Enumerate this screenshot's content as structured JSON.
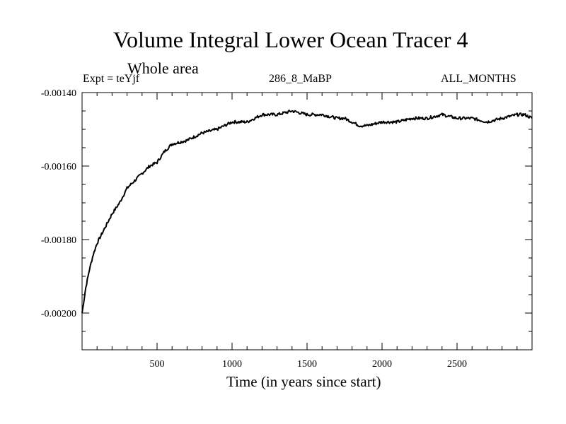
{
  "chart_data": {
    "type": "line",
    "title": "Volume Integral Lower Ocean Tracer 4",
    "subtitle": "Whole area",
    "experiment": "Expt = teYjf",
    "run_label": "286_8_MaBP",
    "period_label": "ALL_MONTHS",
    "xlabel": "Time (in years since start)",
    "ylabel": "",
    "xlim": [
      0,
      3000
    ],
    "ylim": [
      -0.0021,
      -0.0014
    ],
    "x_ticks": [
      500,
      1000,
      1500,
      2000,
      2500
    ],
    "x_tick_labels": [
      "500",
      "1000",
      "1500",
      "2000",
      "2500"
    ],
    "y_ticks": [
      -0.0014,
      -0.0016,
      -0.0018,
      -0.002
    ],
    "y_tick_labels": [
      "-0.00140",
      "-0.00160",
      "-0.00180",
      "-0.00200"
    ],
    "series": [
      {
        "name": "Lower Ocean Tracer 4",
        "x": [
          0,
          25,
          50,
          75,
          100,
          150,
          200,
          250,
          300,
          350,
          400,
          450,
          500,
          550,
          600,
          700,
          800,
          900,
          1000,
          1100,
          1200,
          1300,
          1400,
          1500,
          1600,
          1700,
          1750,
          1800,
          1850,
          1900,
          2000,
          2100,
          2200,
          2300,
          2400,
          2500,
          2600,
          2700,
          2800,
          2900,
          2950,
          3000
        ],
        "y": [
          -0.002,
          -0.00193,
          -0.00188,
          -0.00184,
          -0.00181,
          -0.00177,
          -0.00173,
          -0.0017,
          -0.00166,
          -0.00164,
          -0.00162,
          -0.0016,
          -0.00159,
          -0.00156,
          -0.00154,
          -0.00153,
          -0.00151,
          -0.0015,
          -0.00148,
          -0.00148,
          -0.00146,
          -0.00146,
          -0.00145,
          -0.00146,
          -0.00146,
          -0.00147,
          -0.00147,
          -0.00148,
          -0.00149,
          -0.00149,
          -0.00148,
          -0.00148,
          -0.00147,
          -0.00147,
          -0.00146,
          -0.00147,
          -0.00147,
          -0.00148,
          -0.00147,
          -0.00146,
          -0.00146,
          -0.00147
        ]
      }
    ]
  }
}
